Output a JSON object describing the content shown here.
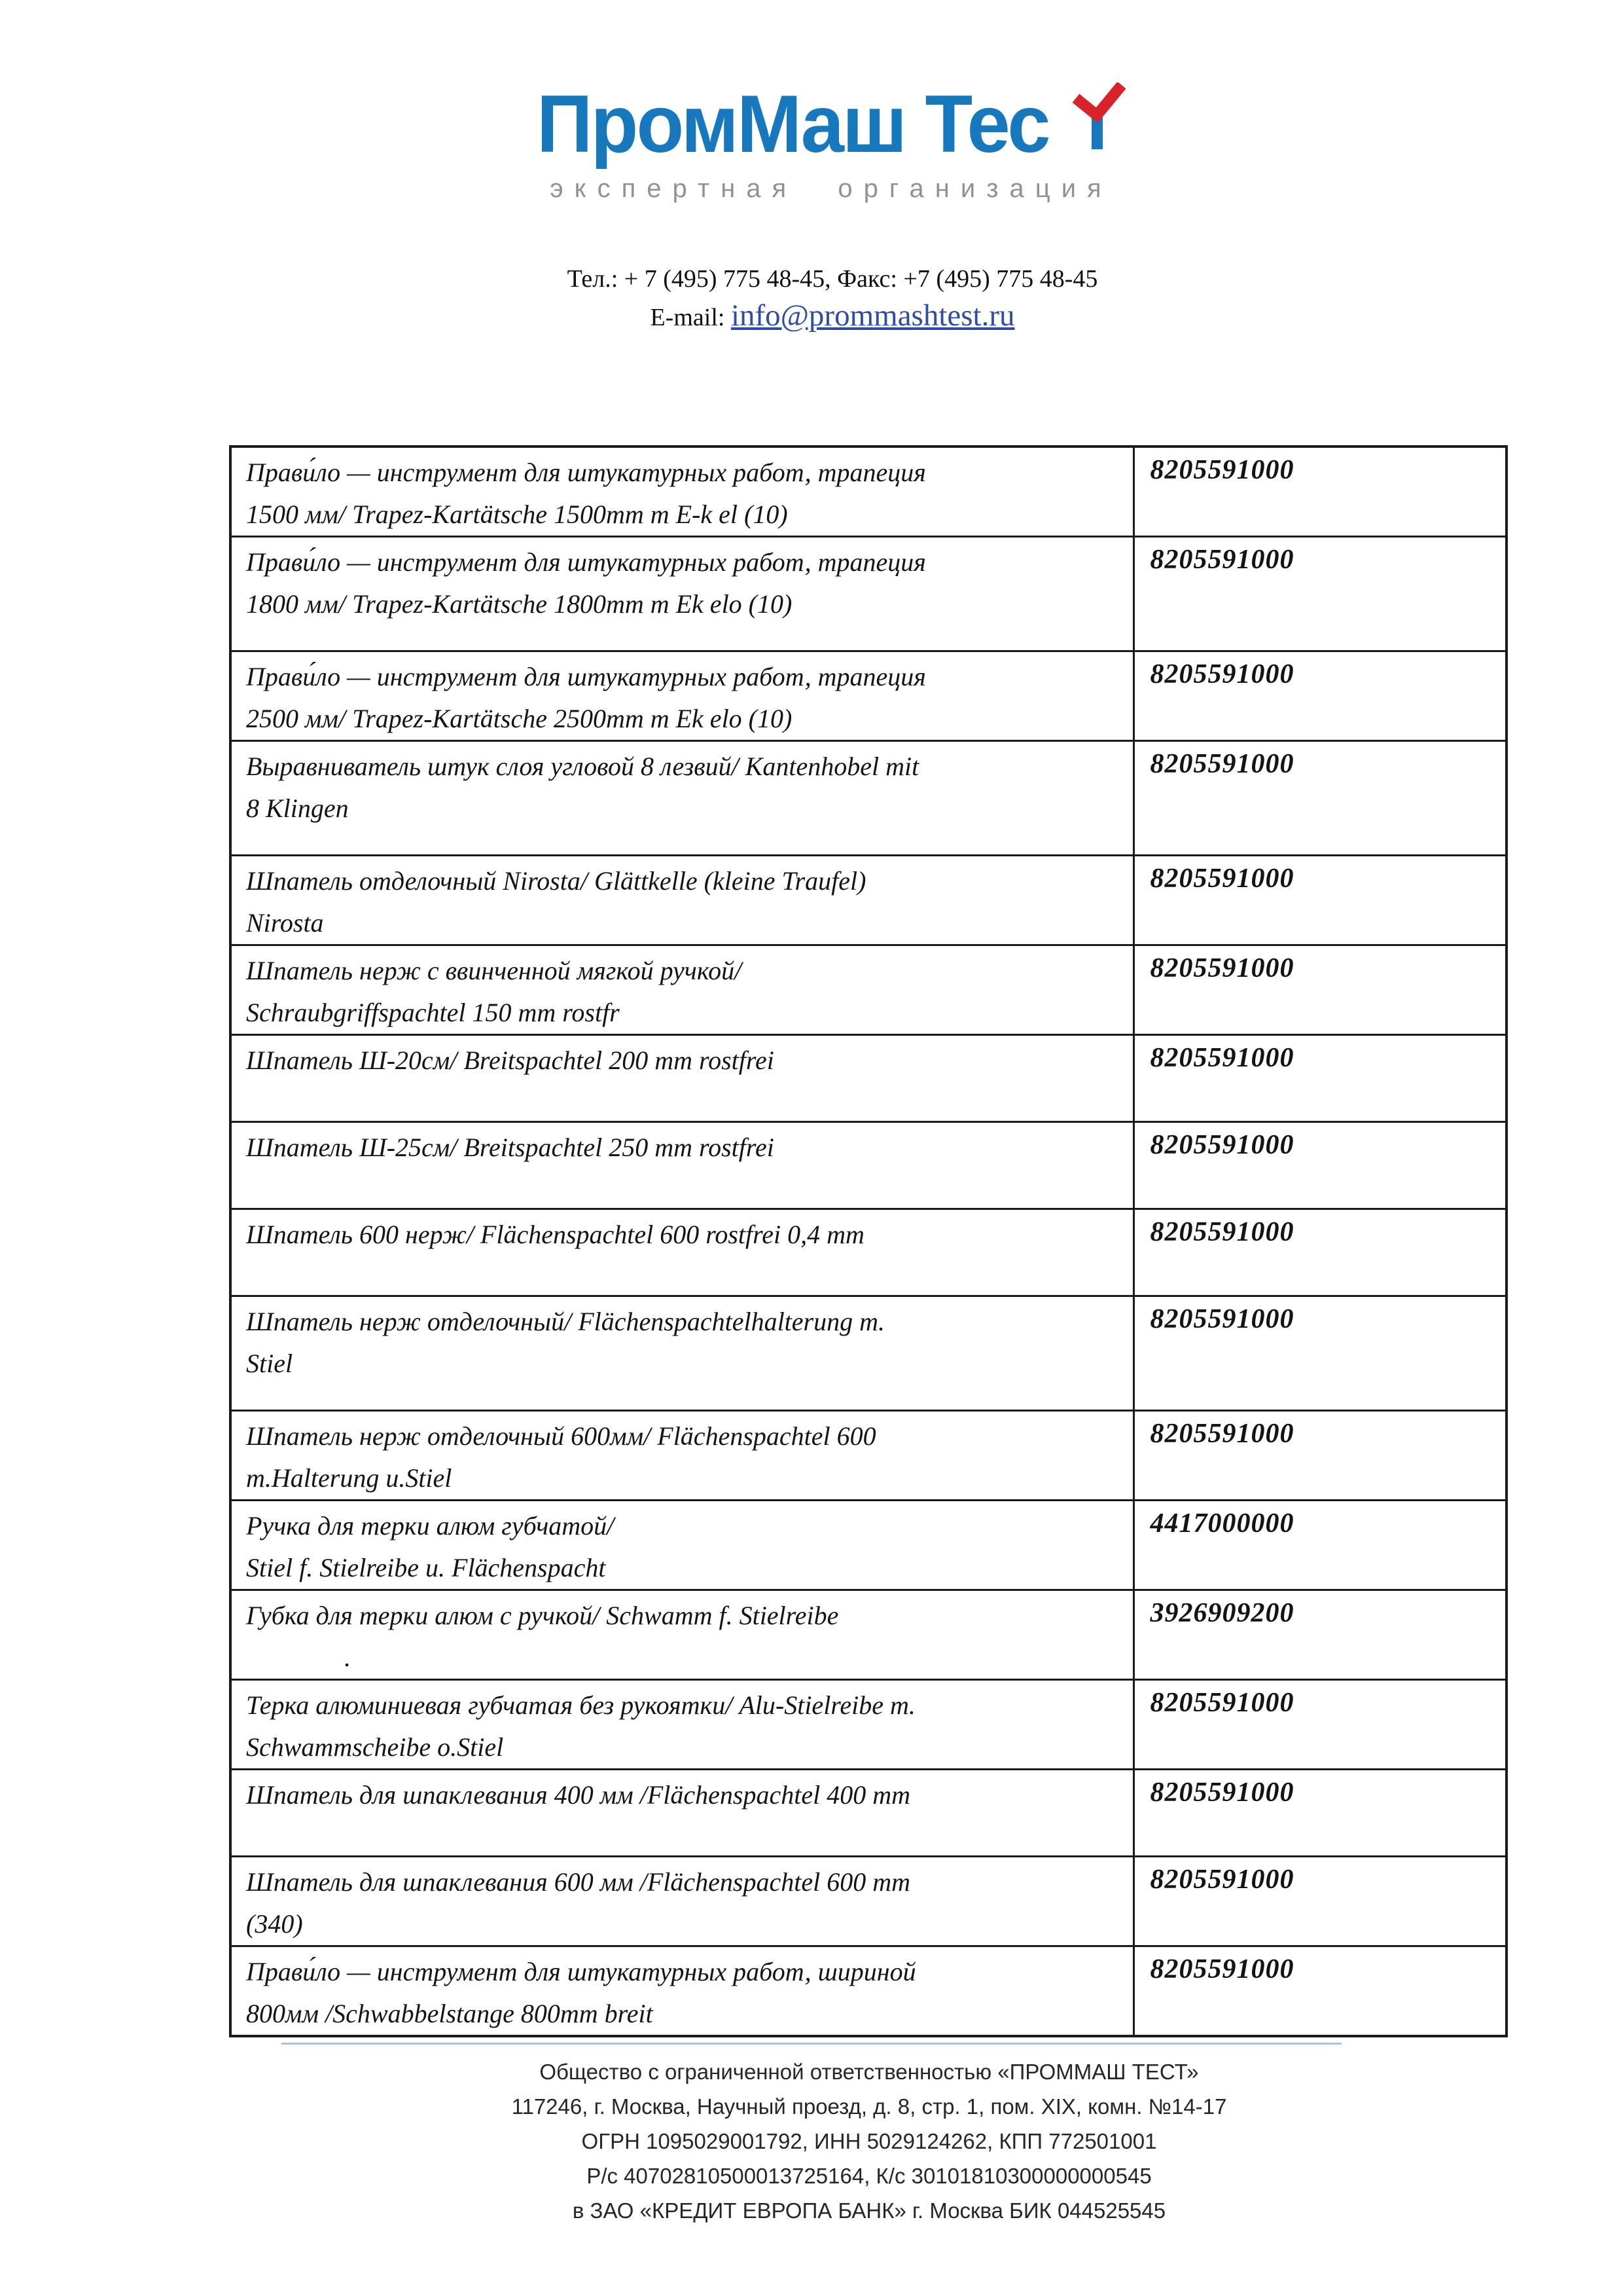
{
  "logo": {
    "brand_text": "ПромМаш Тес",
    "brand_last_letter": "т",
    "tagline": "экспертная организация",
    "brand_color": "#1878be",
    "check_color": "#d8232a"
  },
  "contact": {
    "phone_line": "Тел.: + 7 (495) 775 48-45, Факс: +7 (495) 775 48-45",
    "email_label": "E-mail:",
    "email": "info@prommashtest.ru"
  },
  "table": {
    "columns": [
      "product-description",
      "hs-code"
    ],
    "rows": [
      {
        "lines": [
          "Прави́ло — инструмент для штукатурных работ, трапеция",
          "1500 мм/ Trapez-Kartätsche 1500mm m E-k el (10)"
        ],
        "code": "8205591000"
      },
      {
        "lines": [
          "Прави́ло — инструмент для штукатурных работ, трапеция",
          "1800 мм/ Trapez-Kartätsche 1800mm m Ek elo (10)"
        ],
        "code": "8205591000"
      },
      {
        "lines": [
          "Прави́ло — инструмент для штукатурных работ, трапеция",
          "2500 мм/ Trapez-Kartätsche 2500mm m Ek elo (10)"
        ],
        "code": "8205591000"
      },
      {
        "lines": [
          "Выравниватель штук слоя угловой 8 лезвий/ Kantenhobel mit",
          "8 Klingen"
        ],
        "code": "8205591000"
      },
      {
        "lines": [
          "Шпатель отделочный Nirosta/ Glättkelle (kleine Traufel)",
          "Nirosta"
        ],
        "code": "8205591000"
      },
      {
        "lines": [
          "Шпатель нерж с ввинченной мягкой ручкой/",
          "Schraubgriffspachtel 150 mm rostfr"
        ],
        "code": "8205591000"
      },
      {
        "lines": [
          "Шпатель Ш-20см/ Breitspachtel 200 mm rostfrei"
        ],
        "code": "8205591000"
      },
      {
        "lines": [
          "Шпатель Ш-25см/ Breitspachtel 250 mm rostfrei"
        ],
        "code": "8205591000"
      },
      {
        "lines": [
          "Шпатель 600 нерж/ Flächenspachtel 600 rostfrei 0,4 mm"
        ],
        "code": "8205591000"
      },
      {
        "lines": [
          "Шпатель нерж отделочный/ Flächenspachtelhalterung m.",
          "Stiel"
        ],
        "code": "8205591000"
      },
      {
        "lines": [
          "Шпатель нерж отделочный 600мм/ Flächenspachtel 600",
          "m.Halterung u.Stiel"
        ],
        "code": "8205591000"
      },
      {
        "lines": [
          "Ручка для терки алюм губчатой/",
          "Stiel f. Stielreibe u. Flächenspacht"
        ],
        "code": "4417000000"
      },
      {
        "lines": [
          "Губка для терки алюм с ручкой/ Schwamm f. Stielreibe",
          "."
        ],
        "code": "3926909200"
      },
      {
        "lines": [
          "Терка алюминиевая губчатая без рукоятки/ Alu-Stielreibe m.",
          "Schwammscheibe o.Stiel"
        ],
        "code": "8205591000"
      },
      {
        "lines": [
          "Шпатель для шпаклевания 400 мм /Flächenspachtel 400 mm"
        ],
        "code": "8205591000"
      },
      {
        "lines": [
          "Шпатель для шпаклевания 600 мм /Flächenspachtel 600 mm",
          "(340)"
        ],
        "code": "8205591000"
      },
      {
        "lines": [
          "Прави́ло — инструмент для штукатурных работ, шириной",
          "800мм /Schwabbelstange 800mm breit"
        ],
        "code": "8205591000"
      }
    ]
  },
  "footer": {
    "lines": [
      "Общество с ограниченной ответственностью «ПРОММАШ ТЕСТ»",
      "117246, г. Москва, Научный проезд, д. 8, стр. 1, пом. XIX, комн. №14-17",
      "ОГРН 1095029001792, ИНН 5029124262, КПП 772501001",
      "Р/с 40702810500013725164, К/с 30101810300000000545",
      "в ЗАО «КРЕДИТ ЕВРОПА БАНК» г. Москва БИК 044525545"
    ]
  }
}
